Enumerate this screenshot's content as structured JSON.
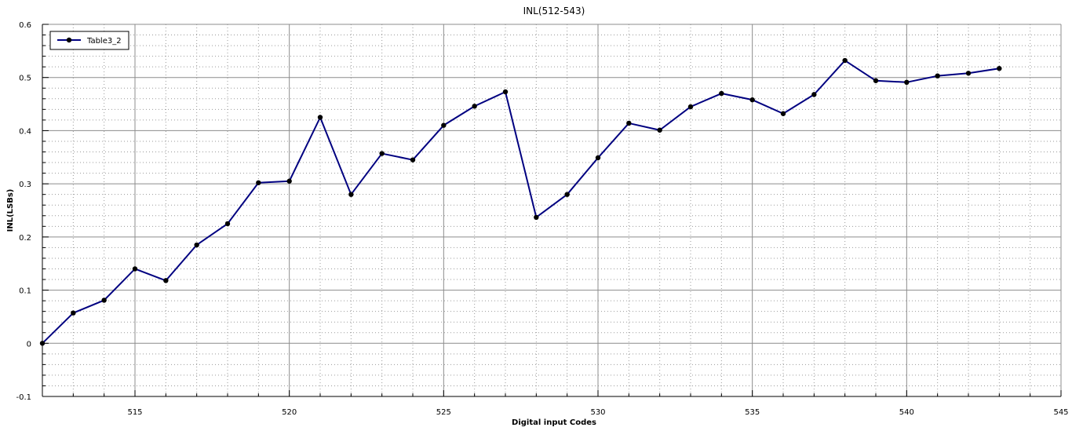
{
  "chart_data": {
    "type": "line",
    "title": "INL(512-543)",
    "xlabel": "Digital input Codes",
    "ylabel": "INL(LSBs)",
    "xlim": [
      512,
      545
    ],
    "ylim": [
      -0.1,
      0.6
    ],
    "x_major_ticks": [
      515,
      520,
      525,
      530,
      535,
      540,
      545
    ],
    "y_major_ticks": [
      -0.1,
      0,
      0.1,
      0.2,
      0.3,
      0.4,
      0.5,
      0.6
    ],
    "y_tick_labels": [
      "-0.1",
      "0",
      "0.1",
      "0.2",
      "0.3",
      "0.4",
      "0.5",
      "0.6"
    ],
    "grid": true,
    "legend_position": "top-left",
    "series": [
      {
        "name": "Table3_2",
        "color": "#000080",
        "marker_color": "#000000",
        "x": [
          512,
          513,
          514,
          515,
          516,
          517,
          518,
          519,
          520,
          521,
          522,
          523,
          524,
          525,
          526,
          527,
          528,
          529,
          530,
          531,
          532,
          533,
          534,
          535,
          536,
          537,
          538,
          539,
          540,
          541,
          542,
          543
        ],
        "values": [
          0.0,
          0.057,
          0.081,
          0.14,
          0.118,
          0.185,
          0.225,
          0.302,
          0.305,
          0.425,
          0.28,
          0.357,
          0.345,
          0.41,
          0.446,
          0.473,
          0.237,
          0.28,
          0.349,
          0.414,
          0.401,
          0.445,
          0.47,
          0.458,
          0.432,
          0.468,
          0.532,
          0.494,
          0.491,
          0.503,
          0.508,
          0.517
        ]
      }
    ]
  }
}
